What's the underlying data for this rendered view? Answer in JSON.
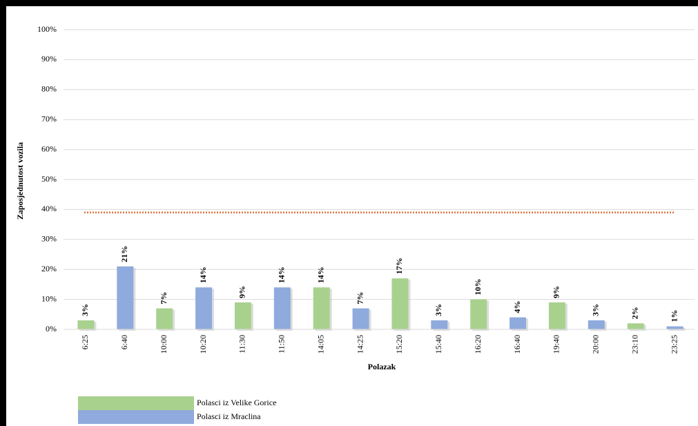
{
  "chart_data": {
    "type": "bar",
    "categories": [
      "6:25",
      "6:40",
      "10:00",
      "10:20",
      "11:30",
      "11:50",
      "14:05",
      "14:25",
      "15:20",
      "15:40",
      "16:20",
      "16:40",
      "19:40",
      "20:00",
      "23:10",
      "23:25"
    ],
    "series": [
      {
        "name": "Polasci iz Velike Gorice",
        "color": "#a9d18e",
        "values": [
          3,
          null,
          7,
          null,
          9,
          null,
          14,
          null,
          17,
          null,
          10,
          null,
          9,
          null,
          2,
          null
        ],
        "value_labels": [
          "3%",
          null,
          "7%",
          null,
          "9%",
          null,
          "14%",
          null,
          "17%",
          null,
          "10%",
          null,
          "9%",
          null,
          "2%",
          null
        ]
      },
      {
        "name": "Polasci iz Mraclina",
        "color": "#8faadc",
        "values": [
          null,
          21,
          null,
          14,
          null,
          14,
          null,
          7,
          null,
          3,
          null,
          4,
          null,
          3,
          null,
          1
        ],
        "value_labels": [
          null,
          "21%",
          null,
          "14%",
          null,
          "14%",
          null,
          "7%",
          null,
          "3%",
          null,
          "4%",
          null,
          "3%",
          null,
          "1%"
        ]
      }
    ],
    "xlabel": "Polazak",
    "ylabel": "Zaposjednutost vozila",
    "ylim": [
      0,
      100
    ],
    "yticks": [
      {
        "value": 0,
        "label": "0%"
      },
      {
        "value": 10,
        "label": "10%"
      },
      {
        "value": 20,
        "label": "20%"
      },
      {
        "value": 30,
        "label": "30%"
      },
      {
        "value": 40,
        "label": "40%"
      },
      {
        "value": 50,
        "label": "50%"
      },
      {
        "value": 60,
        "label": "60%"
      },
      {
        "value": 70,
        "label": "70%"
      },
      {
        "value": 80,
        "label": "80%"
      },
      {
        "value": 90,
        "label": "90%"
      },
      {
        "value": 100,
        "label": "100%"
      }
    ],
    "reference_line": {
      "value": 39,
      "color": "#e0703a"
    },
    "grid": true,
    "legend": "bottom-left"
  }
}
